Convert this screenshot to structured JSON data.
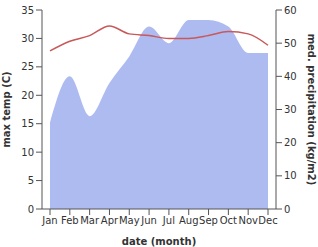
{
  "chart_data": {
    "type": "line",
    "categories": [
      "Jan",
      "Feb",
      "Mar",
      "Apr",
      "May",
      "Jun",
      "Jul",
      "Aug",
      "Sep",
      "Oct",
      "Nov",
      "Dec"
    ],
    "x_label": "date (month)",
    "y_label": "max temp (C)",
    "y2_label": "med. precipitation (kg/m2)",
    "ylim": [
      0,
      35
    ],
    "yticks": [
      0,
      5,
      10,
      15,
      20,
      25,
      30,
      35
    ],
    "y2lim": [
      0,
      60
    ],
    "y2ticks": [
      0,
      10,
      20,
      30,
      40,
      50,
      60
    ],
    "grid": false,
    "series": [
      {
        "name": "med. precipitation",
        "type": "area",
        "axis": "y2",
        "color": "#aebbf1",
        "values": [
          26,
          40,
          28,
          38,
          46,
          55,
          50,
          57,
          57,
          55,
          47,
          47
        ]
      },
      {
        "name": "max temp",
        "type": "line",
        "axis": "y",
        "color": "#c8585a",
        "values": [
          27.8,
          29.5,
          30.5,
          32.2,
          30.8,
          30.5,
          30,
          30,
          30.5,
          31.2,
          30.8,
          28.8
        ]
      }
    ]
  }
}
